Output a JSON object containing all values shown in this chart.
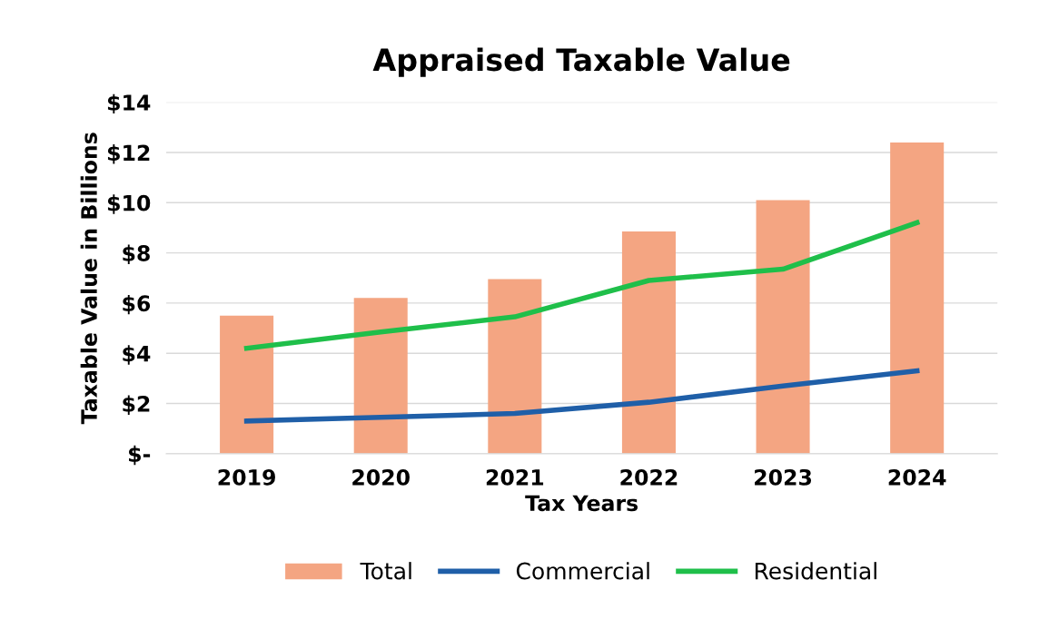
{
  "chart_data": {
    "type": "bar",
    "title": "Appraised Taxable Value",
    "xlabel": "Tax Years",
    "ylabel": "Taxable Value in Billions",
    "categories": [
      "2019",
      "2020",
      "2021",
      "2022",
      "2023",
      "2024"
    ],
    "series": [
      {
        "name": "Total",
        "color": "#f4a582",
        "values": [
          5.5,
          6.2,
          6.95,
          8.85,
          10.1,
          12.4
        ]
      },
      {
        "name": "Commercial",
        "type": "line",
        "color": "#1f5fa8",
        "values": [
          1.3,
          1.45,
          1.6,
          2.05,
          2.7,
          3.3
        ]
      },
      {
        "name": "Residential",
        "type": "line",
        "color": "#1fbf4a",
        "values": [
          4.2,
          4.85,
          5.45,
          6.9,
          7.35,
          9.2
        ]
      }
    ],
    "ylim": [
      0,
      14
    ],
    "yticks": [
      {
        "value": 0,
        "label": "$-"
      },
      {
        "value": 2,
        "label": "$2"
      },
      {
        "value": 4,
        "label": "$4"
      },
      {
        "value": 6,
        "label": "$6"
      },
      {
        "value": 8,
        "label": "$8"
      },
      {
        "value": 10,
        "label": "$10"
      },
      {
        "value": 12,
        "label": "$12"
      },
      {
        "value": 14,
        "label": "$14"
      }
    ],
    "grid": "y",
    "legend": "bottom"
  }
}
